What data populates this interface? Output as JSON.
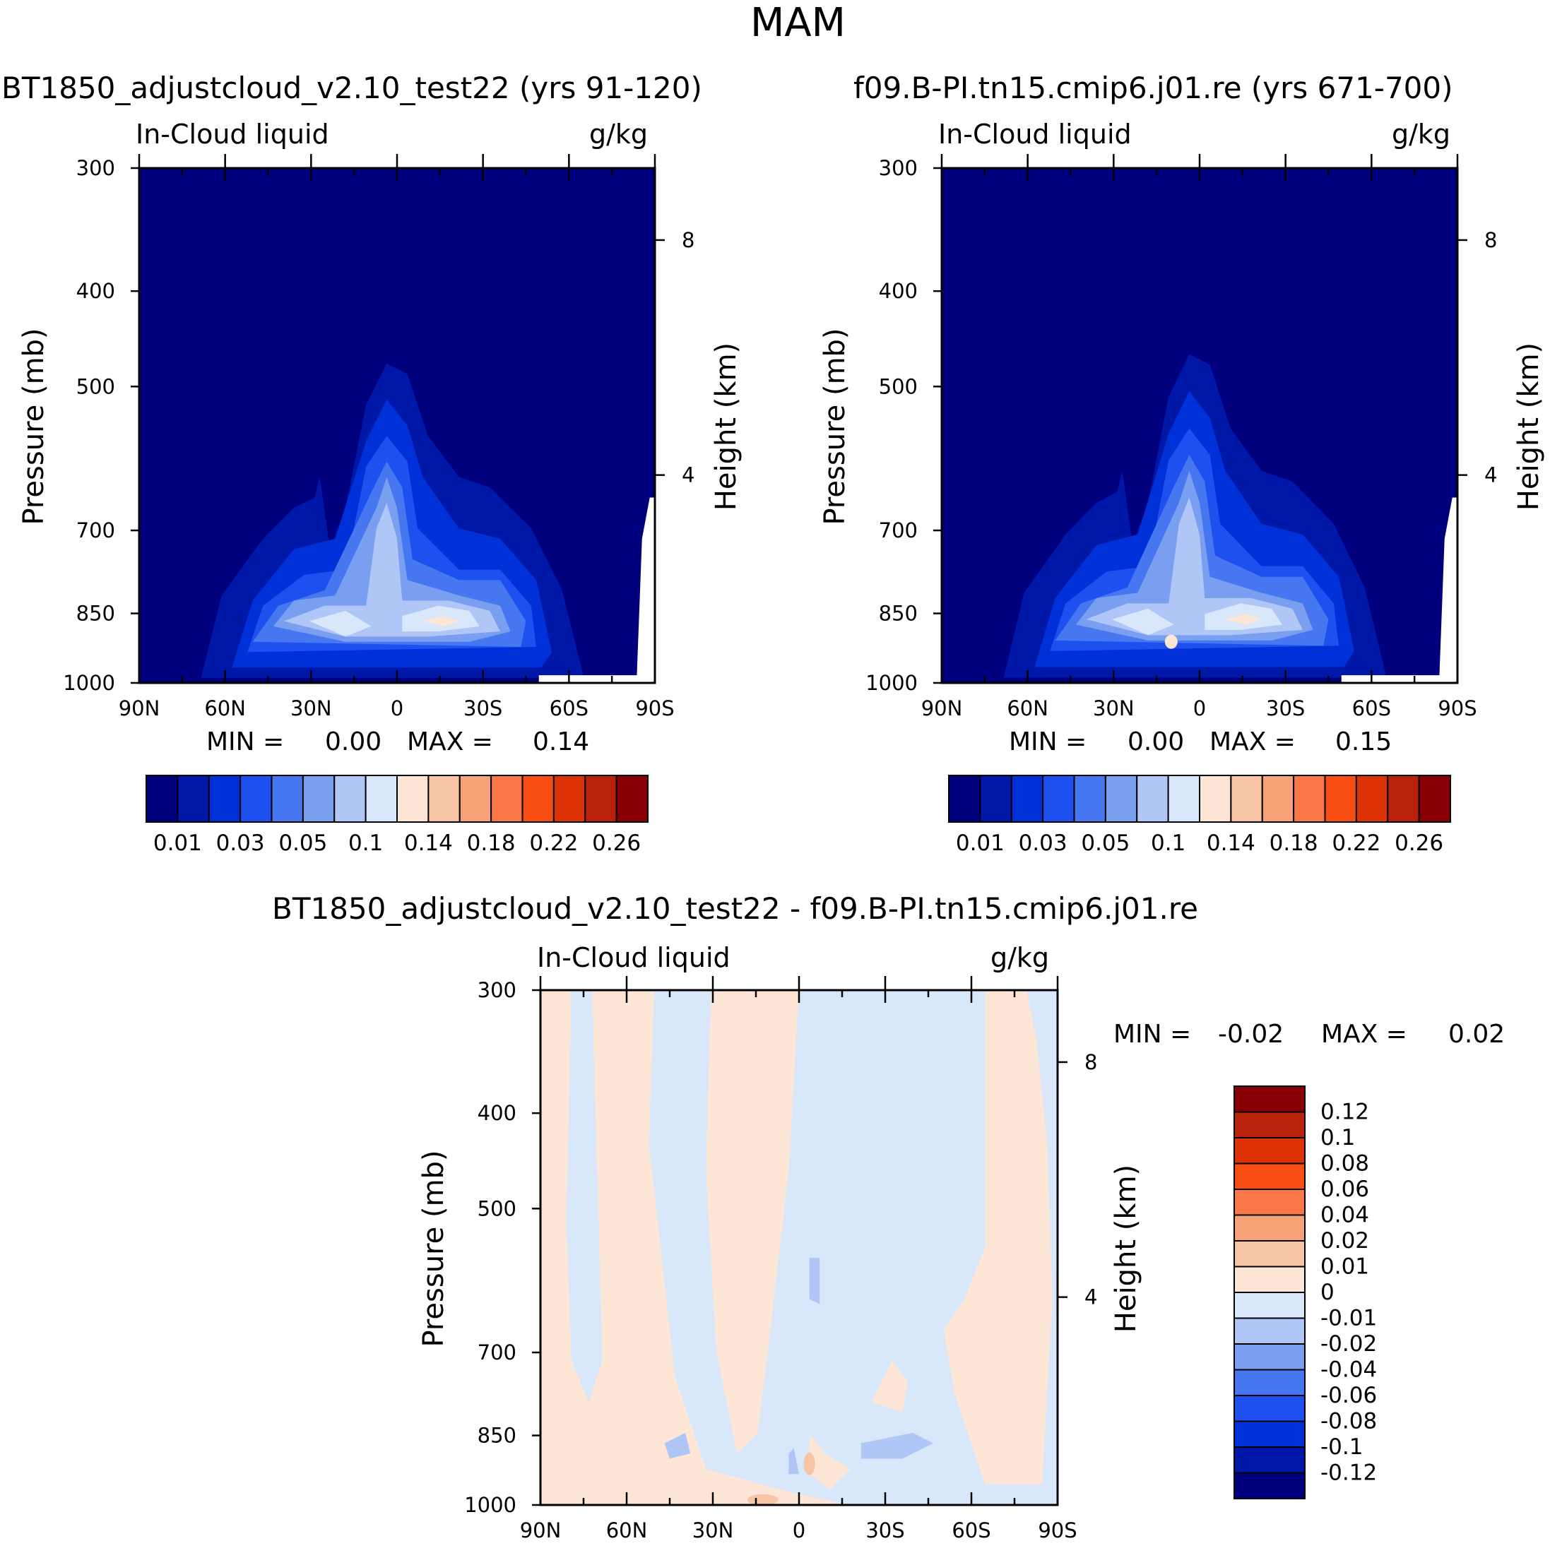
{
  "figure": {
    "title": "MAM",
    "diff_title": "BT1850_adjustcloud_v2.10_test22 - f09.B-PI.tn15.cmip6.j01.re"
  },
  "panels": [
    {
      "id": "left",
      "title": "BT1850_adjustcloud_v2.10_test22 (yrs 91-120)",
      "variable": "In-Cloud liquid",
      "units": "g/kg",
      "min_label": "MIN =",
      "min_value": "0.00",
      "max_label": "MAX =",
      "max_value": "0.14"
    },
    {
      "id": "right",
      "title": "f09.B-PI.tn15.cmip6.j01.re (yrs 671-700)",
      "variable": "In-Cloud liquid",
      "units": "g/kg",
      "min_label": "MIN =",
      "min_value": "0.00",
      "max_label": "MAX =",
      "max_value": "0.15"
    },
    {
      "id": "diff",
      "title": "BT1850_adjustcloud_v2.10_test22 - f09.B-PI.tn15.cmip6.j01.re",
      "variable": "In-Cloud liquid",
      "units": "g/kg",
      "min_label": "MIN =",
      "min_value": "-0.02",
      "max_label": "MAX =",
      "max_value": "0.02"
    }
  ],
  "chart_data": [
    {
      "type": "heatmap",
      "title": "BT1850_adjustcloud_v2.10_test22 (yrs 91-120)",
      "variable": "In-Cloud liquid",
      "units": "g/kg",
      "xlabel": "",
      "ylabel": "Pressure (mb)",
      "y2label": "Height (km)",
      "x_ticks": [
        "90N",
        "60N",
        "30N",
        "0",
        "30S",
        "60S",
        "90S"
      ],
      "y_ticks": [
        "300",
        "400",
        "500",
        "700",
        "850",
        "1000"
      ],
      "y2_ticks": [
        "8",
        "4"
      ],
      "ylim": [
        1000,
        300
      ],
      "min": 0.0,
      "max": 0.14,
      "colorbar_labels": [
        "0.01",
        "0.03",
        "0.05",
        "0.1",
        "0.14",
        "0.18",
        "0.22",
        "0.26"
      ],
      "colorbar_colors": [
        "#00007f",
        "#0018a8",
        "#0030d8",
        "#1e50f0",
        "#4677f0",
        "#7a9ef0",
        "#b0c6f6",
        "#d8e8fa",
        "#fde6d6",
        "#f8c4a6",
        "#f8a27a",
        "#fa7848",
        "#f84e14",
        "#dc3206",
        "#b8220a",
        "#880006"
      ]
    },
    {
      "type": "heatmap",
      "title": "f09.B-PI.tn15.cmip6.j01.re (yrs 671-700)",
      "variable": "In-Cloud liquid",
      "units": "g/kg",
      "xlabel": "",
      "ylabel": "Pressure (mb)",
      "y2label": "Height (km)",
      "x_ticks": [
        "90N",
        "60N",
        "30N",
        "0",
        "30S",
        "60S",
        "90S"
      ],
      "y_ticks": [
        "300",
        "400",
        "500",
        "700",
        "850",
        "1000"
      ],
      "y2_ticks": [
        "8",
        "4"
      ],
      "ylim": [
        1000,
        300
      ],
      "min": 0.0,
      "max": 0.15,
      "colorbar_labels": [
        "0.01",
        "0.03",
        "0.05",
        "0.1",
        "0.14",
        "0.18",
        "0.22",
        "0.26"
      ],
      "colorbar_colors": [
        "#00007f",
        "#0018a8",
        "#0030d8",
        "#1e50f0",
        "#4677f0",
        "#7a9ef0",
        "#b0c6f6",
        "#d8e8fa",
        "#fde6d6",
        "#f8c4a6",
        "#f8a27a",
        "#fa7848",
        "#f84e14",
        "#dc3206",
        "#b8220a",
        "#880006"
      ]
    },
    {
      "type": "heatmap",
      "title": "BT1850_adjustcloud_v2.10_test22 - f09.B-PI.tn15.cmip6.j01.re",
      "variable": "In-Cloud liquid",
      "units": "g/kg",
      "xlabel": "",
      "ylabel": "Pressure (mb)",
      "y2label": "Height (km)",
      "x_ticks": [
        "90N",
        "60N",
        "30N",
        "0",
        "30S",
        "60S",
        "90S"
      ],
      "y_ticks": [
        "300",
        "400",
        "500",
        "700",
        "850",
        "1000"
      ],
      "y2_ticks": [
        "8",
        "4"
      ],
      "ylim": [
        1000,
        300
      ],
      "min": -0.02,
      "max": 0.02,
      "colorbar_labels": [
        "0.12",
        "0.1",
        "0.08",
        "0.06",
        "0.04",
        "0.02",
        "0.01",
        "0",
        "-0.01",
        "-0.02",
        "-0.04",
        "-0.06",
        "-0.08",
        "-0.1",
        "-0.12"
      ],
      "colorbar_colors": [
        "#880006",
        "#b8220a",
        "#dc3206",
        "#f84e14",
        "#fa7848",
        "#f8a27a",
        "#f8c4a6",
        "#fde6d6",
        "#d8e8fa",
        "#b0c6f6",
        "#7a9ef0",
        "#4677f0",
        "#1e50f0",
        "#0030d8",
        "#0018a8",
        "#00007f"
      ]
    }
  ]
}
